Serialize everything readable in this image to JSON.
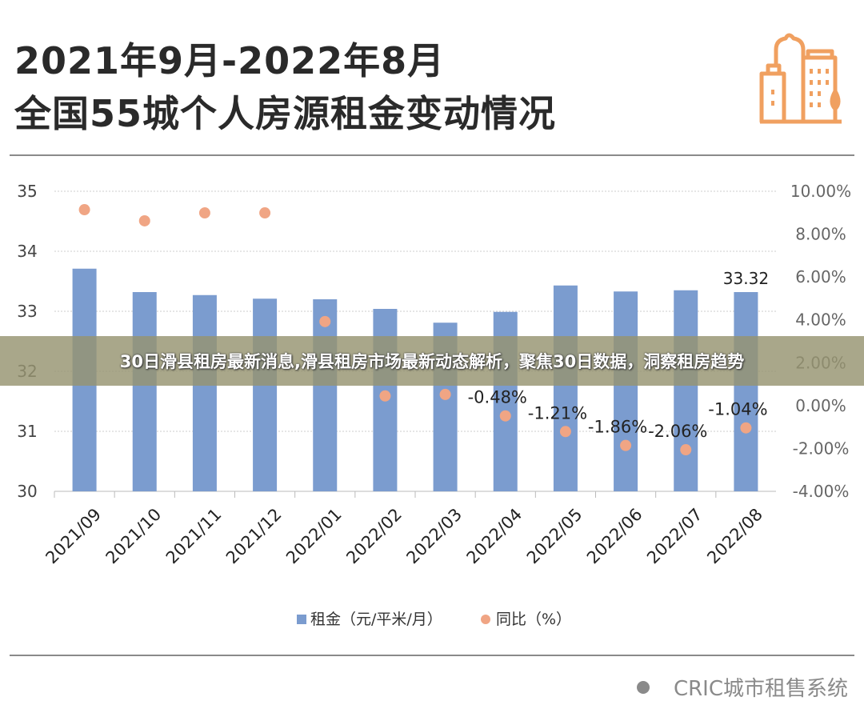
{
  "header": {
    "title_line1": "2021年9月-2022年8月",
    "title_line2": "全国55城个人房源租金变动情况",
    "logo_icon": "building-icon",
    "logo_color": "#f0a060"
  },
  "banner": {
    "text": "30日滑县租房最新消息,滑县租房市场最新动态解析，聚焦30日数据，洞察租房趋势"
  },
  "footer": {
    "brand": "CRIC城市租售系统"
  },
  "chart_data": {
    "type": "bar+scatter",
    "categories": [
      "2021/09",
      "2021/10",
      "2021/11",
      "2021/12",
      "2022/01",
      "2022/02",
      "2022/03",
      "2022/04",
      "2022/05",
      "2022/06",
      "2022/07",
      "2022/08"
    ],
    "series": [
      {
        "name": "租金（元/平米/月）",
        "type": "bar",
        "axis": "left",
        "color": "#7b9ccf",
        "values": [
          33.71,
          33.32,
          33.27,
          33.21,
          33.2,
          33.04,
          32.81,
          32.99,
          33.43,
          33.33,
          33.35,
          33.32
        ],
        "labels": [
          "",
          "",
          "",
          "",
          "",
          "",
          "",
          "",
          "",
          "",
          "",
          "33.32"
        ]
      },
      {
        "name": "同比（%）",
        "type": "scatter",
        "axis": "right",
        "color": "#f0a584",
        "values": [
          9.14,
          8.62,
          8.99,
          8.99,
          3.92,
          0.45,
          0.52,
          -0.48,
          -1.21,
          -1.86,
          -2.06,
          -1.04
        ],
        "labels": [
          "",
          "",
          "",
          "",
          "",
          "",
          "",
          "-0.48%",
          "-1.21%",
          "-1.86%",
          "-2.06%",
          "-1.04%"
        ]
      }
    ],
    "y_left": {
      "range": [
        30,
        35
      ],
      "ticks": [
        "30",
        "31",
        "32",
        "33",
        "34",
        "35"
      ]
    },
    "y_right": {
      "range": [
        -4,
        10
      ],
      "ticks": [
        "-4.00%",
        "-2.00%",
        "0.00%",
        "2.00%",
        "4.00%",
        "6.00%",
        "8.00%",
        "10.00%"
      ]
    },
    "grid": true,
    "legend": "bottom"
  }
}
